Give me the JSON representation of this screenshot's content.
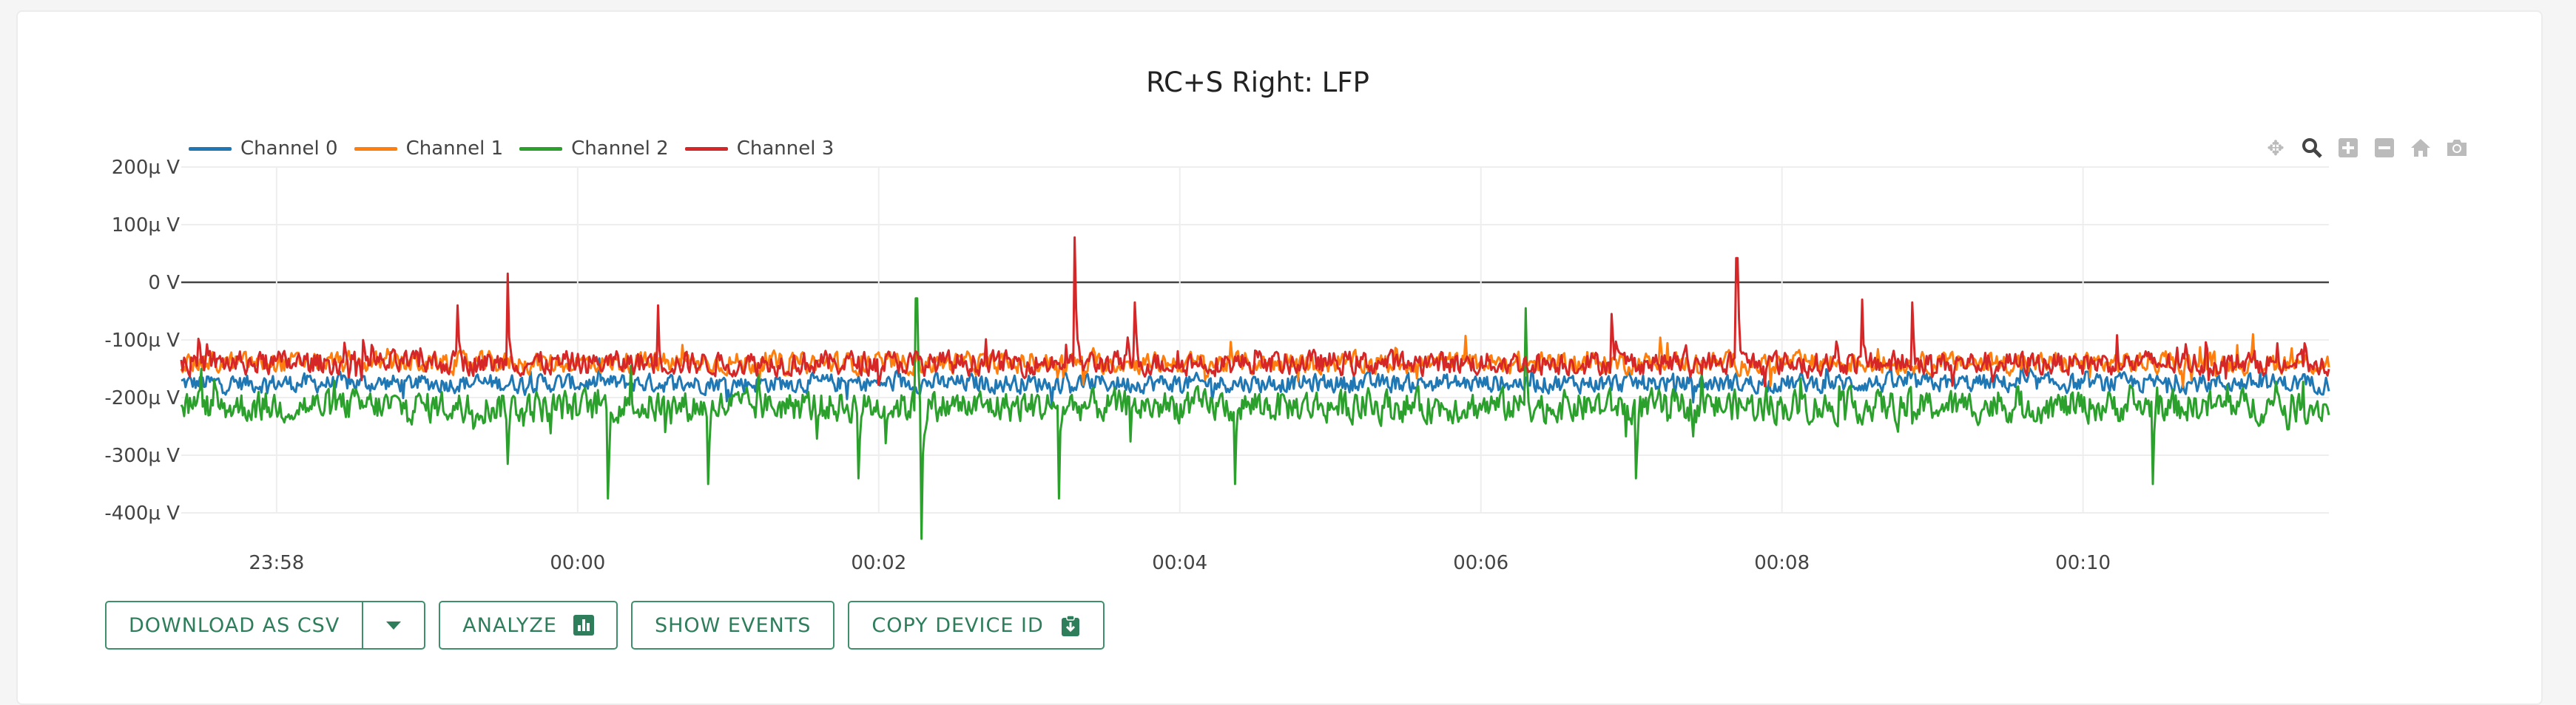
{
  "chart_data": {
    "type": "line",
    "title": "RC+S Right: LFP",
    "xlabel": "",
    "ylabel": "",
    "x_range": [
      "23:57:22",
      "00:11:38"
    ],
    "x_ticks": [
      "23:58",
      "00:00",
      "00:02",
      "00:04",
      "00:06",
      "00:08",
      "00:10"
    ],
    "y_ticks": [
      "200µ V",
      "100µ V",
      "0 V",
      "-100µ V",
      "-200µ V",
      "-300µ V",
      "-400µ V"
    ],
    "ylim": [
      -400,
      200
    ],
    "y_unit": "µV",
    "grid": true,
    "legend_position": "top-left",
    "series": [
      {
        "name": "Channel 0",
        "color": "#1f77b4",
        "baseline": -175,
        "noise": 22,
        "spikes": []
      },
      {
        "name": "Channel 1",
        "color": "#ff7f0e",
        "baseline": -140,
        "noise": 25,
        "spikes": []
      },
      {
        "name": "Channel 2",
        "color": "#2ca02c",
        "baseline": -215,
        "noise": 38,
        "spikes": [
          [
            "00:00:12",
            -375
          ],
          [
            "00:02:17",
            -445
          ],
          [
            "00:03:12",
            -375
          ],
          [
            "00:02:15",
            -28
          ],
          [
            "00:06:18",
            -45
          ],
          [
            "00:08:52",
            -245
          ],
          [
            "23:59:32",
            -315
          ],
          [
            "00:00:52",
            -350
          ],
          [
            "00:01:52",
            -340
          ],
          [
            "00:04:22",
            -350
          ],
          [
            "00:10:28",
            -350
          ],
          [
            "00:07:02",
            -340
          ]
        ]
      },
      {
        "name": "Channel 3",
        "color": "#d62728",
        "baseline": -140,
        "noise": 28,
        "spikes": [
          [
            "23:59:32",
            15
          ],
          [
            "00:03:18",
            78
          ],
          [
            "00:07:42",
            42
          ],
          [
            "23:59:12",
            -40
          ],
          [
            "00:00:32",
            -40
          ],
          [
            "00:03:42",
            -35
          ],
          [
            "00:08:32",
            -30
          ],
          [
            "00:08:52",
            -35
          ],
          [
            "00:06:52",
            -55
          ]
        ]
      }
    ]
  },
  "modebar": {
    "icons": [
      "pan-icon",
      "zoom-icon",
      "zoom-in-icon",
      "zoom-out-icon",
      "reset-axes-icon",
      "camera-icon"
    ]
  },
  "buttons": {
    "download_label": "DOWNLOAD AS CSV",
    "analyze_label": "ANALYZE",
    "show_events_label": "SHOW EVENTS",
    "copy_device_id_label": "COPY DEVICE ID"
  },
  "colors": {
    "accent": "#2e7d5b"
  }
}
